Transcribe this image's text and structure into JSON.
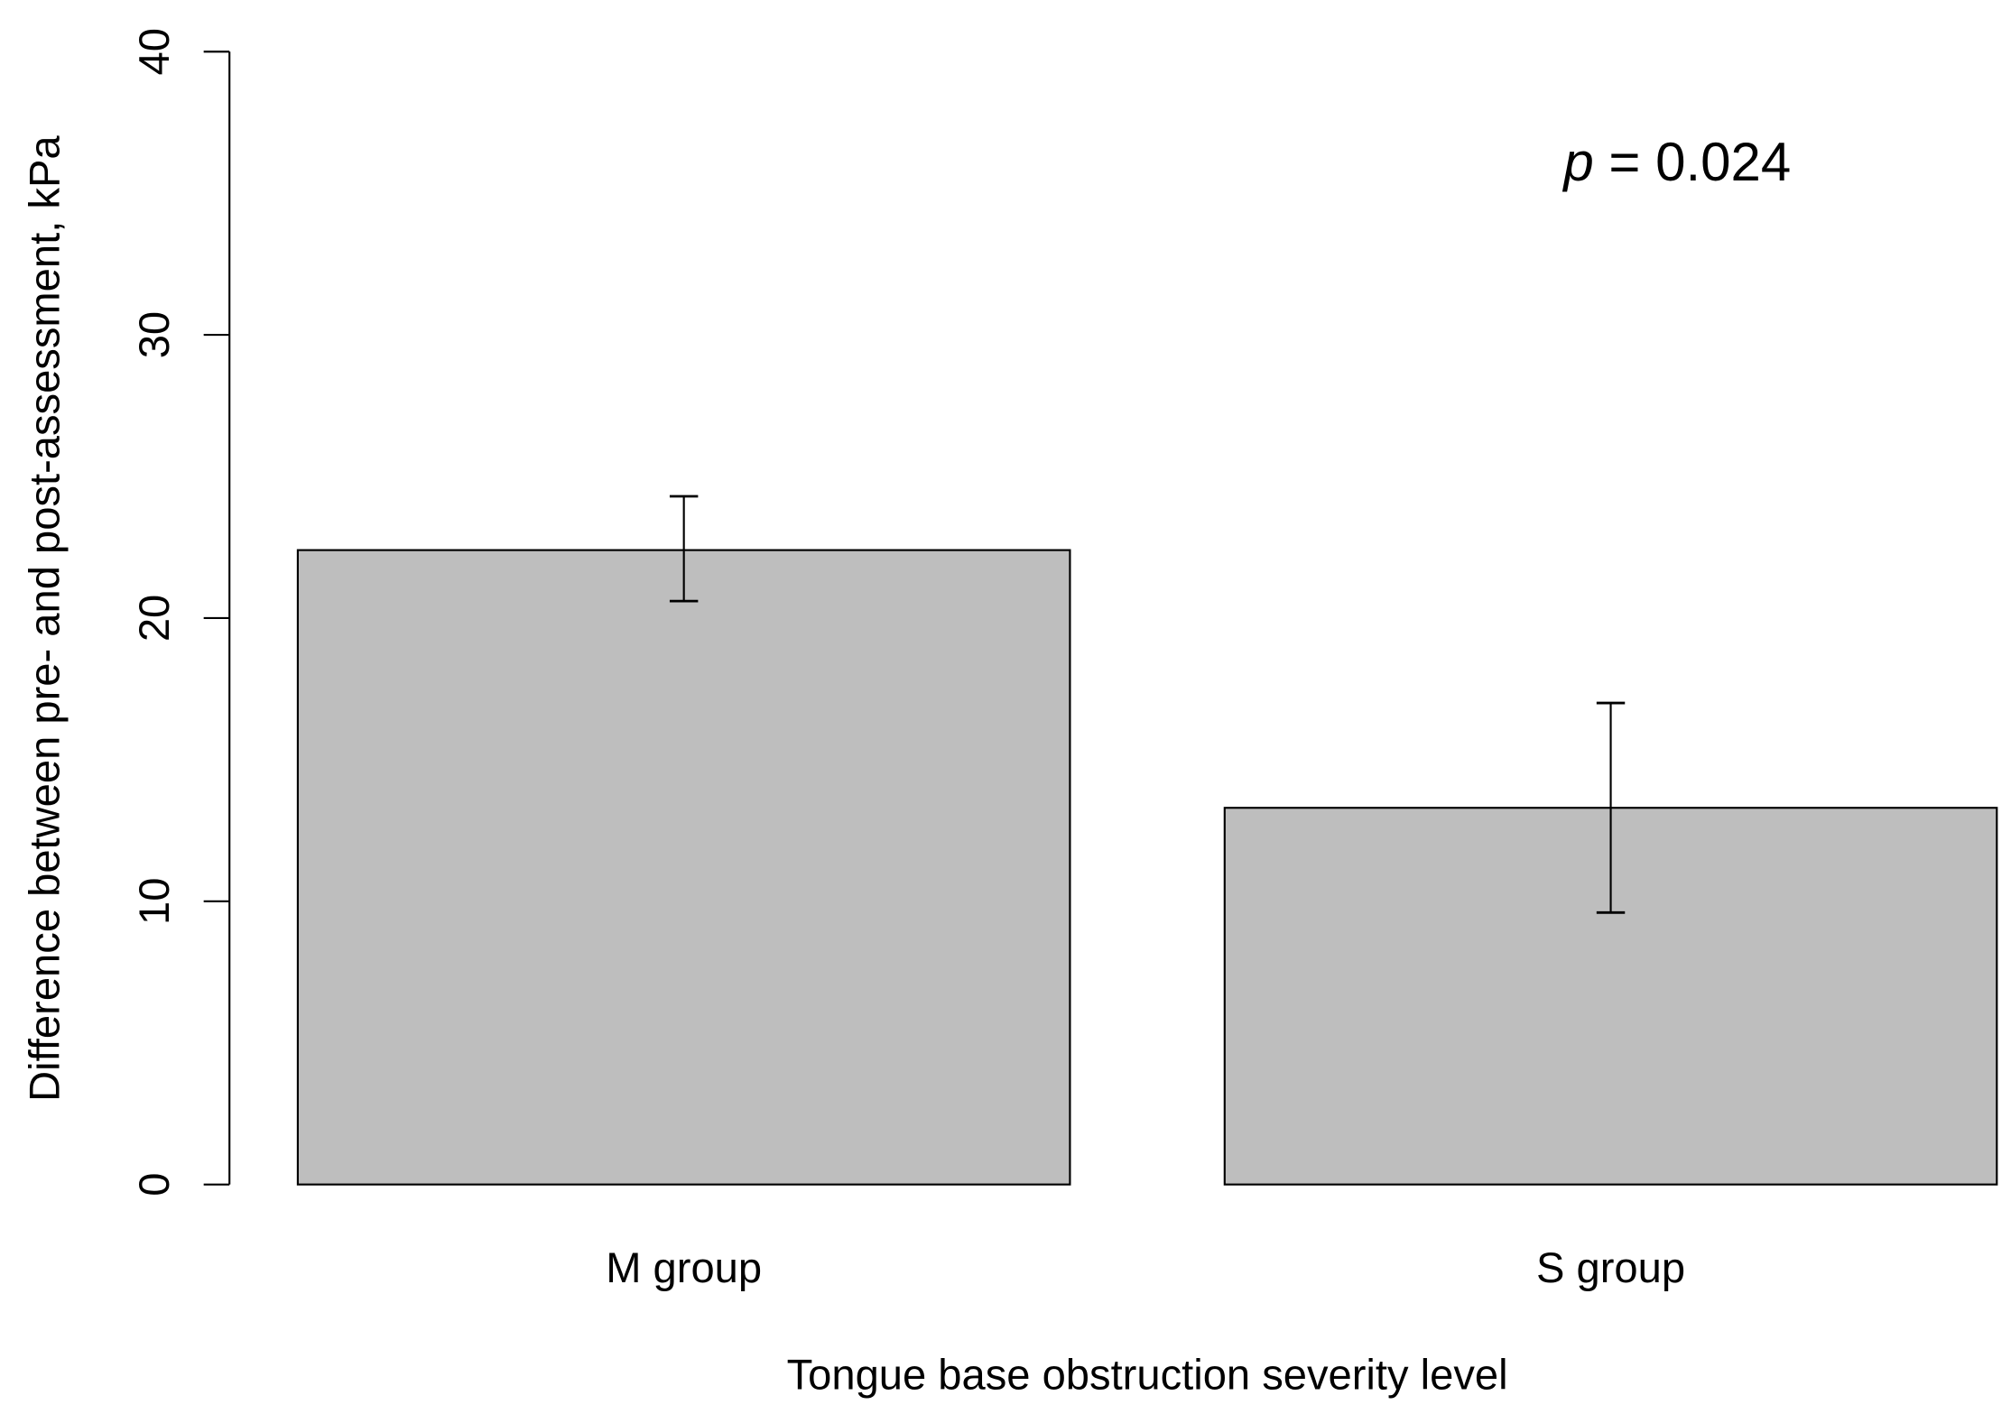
{
  "chart_data": {
    "type": "bar",
    "title": "",
    "xlabel": "Tongue base obstruction severity level",
    "ylabel": "Difference between pre- and post-assessment, kPa",
    "categories": [
      "M group",
      "S group"
    ],
    "values": [
      22.4,
      13.3
    ],
    "error_bars": [
      {
        "low": 20.6,
        "high": 24.3
      },
      {
        "low": 9.6,
        "high": 17.0
      }
    ],
    "ylim": [
      0,
      40
    ],
    "yticks": [
      "0",
      "10",
      "20",
      "30",
      "40"
    ],
    "annotation": {
      "italic": "p",
      "text": " = 0.024"
    },
    "bar_color": "#bebebe",
    "grid": false
  }
}
